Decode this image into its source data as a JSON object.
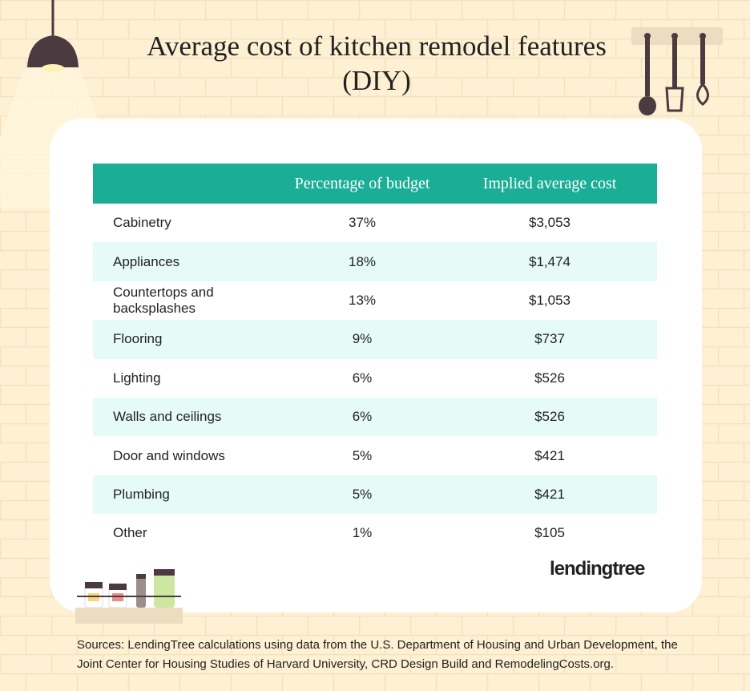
{
  "header": {
    "title": "Average cost of kitchen remodel features (DIY)"
  },
  "table": {
    "columns": [
      "Percentage of budget",
      "Implied average cost"
    ],
    "rows": [
      [
        "Cabinetry",
        "37%",
        "$3,053"
      ],
      [
        "Appliances",
        "18%",
        "$1,474"
      ],
      [
        "Countertops and backsplashes",
        "13%",
        "$1,053"
      ],
      [
        "Flooring",
        "9%",
        "$737"
      ],
      [
        "Lighting",
        "6%",
        "$526"
      ],
      [
        "Walls and ceilings",
        "6%",
        "$526"
      ],
      [
        "Door and windows",
        "5%",
        "$421"
      ],
      [
        "Plumbing",
        "5%",
        "$421"
      ],
      [
        "Other",
        "1%",
        "$105"
      ]
    ]
  },
  "footer": {
    "logo": "lendingtree",
    "sources": "Sources: LendingTree calculations using data from the U.S. Department of Housing and Urban Development, the Joint Center for Housing Studies of Harvard University, CRD Design Build and RemodelingCosts.org."
  }
}
